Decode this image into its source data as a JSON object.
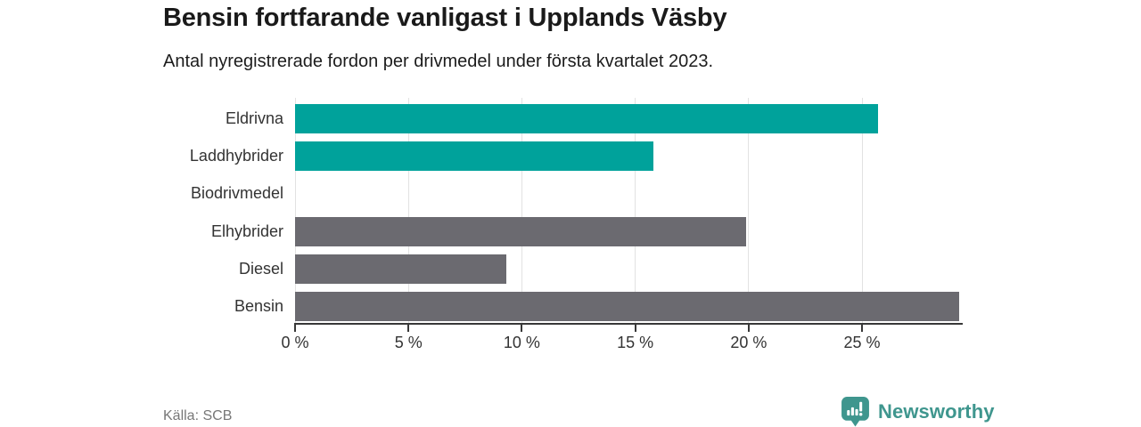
{
  "header": {
    "title": "Bensin fortfarande vanligast i Upplands Väsby",
    "subtitle": "Antal nyregistrerade fordon per drivmedel under första kvartalet 2023."
  },
  "chart_data": {
    "type": "bar",
    "orientation": "horizontal",
    "title": "Bensin fortfarande vanligast i Upplands Väsby",
    "xlabel": "",
    "ylabel": "",
    "unit": "%",
    "categories": [
      "Eldrivna",
      "Laddhybrider",
      "Biodrivmedel",
      "Elhybrider",
      "Diesel",
      "Bensin"
    ],
    "values": [
      25.7,
      15.8,
      0,
      19.9,
      9.3,
      29.3
    ],
    "bar_colors": [
      "#00A29B",
      "#00A29B",
      "#00A29B",
      "#6B6A70",
      "#6B6A70",
      "#6B6A70"
    ],
    "x_axis": {
      "ticks": [
        0,
        5,
        10,
        15,
        20,
        25
      ],
      "tick_labels": [
        "0 %",
        "5 %",
        "10 %",
        "15 %",
        "20 %",
        "25 %"
      ],
      "min": 0,
      "max": 29.4,
      "grid": true
    },
    "legend": "none"
  },
  "footer": {
    "source": "Källa: SCB",
    "logo_text": "Newsworthy"
  },
  "colors": {
    "accent_teal": "#00A29B",
    "neutral_gray": "#6B6A70",
    "gridline": "#e2e2e2",
    "axis": "#383838",
    "logo_teal": "#3F968E"
  }
}
